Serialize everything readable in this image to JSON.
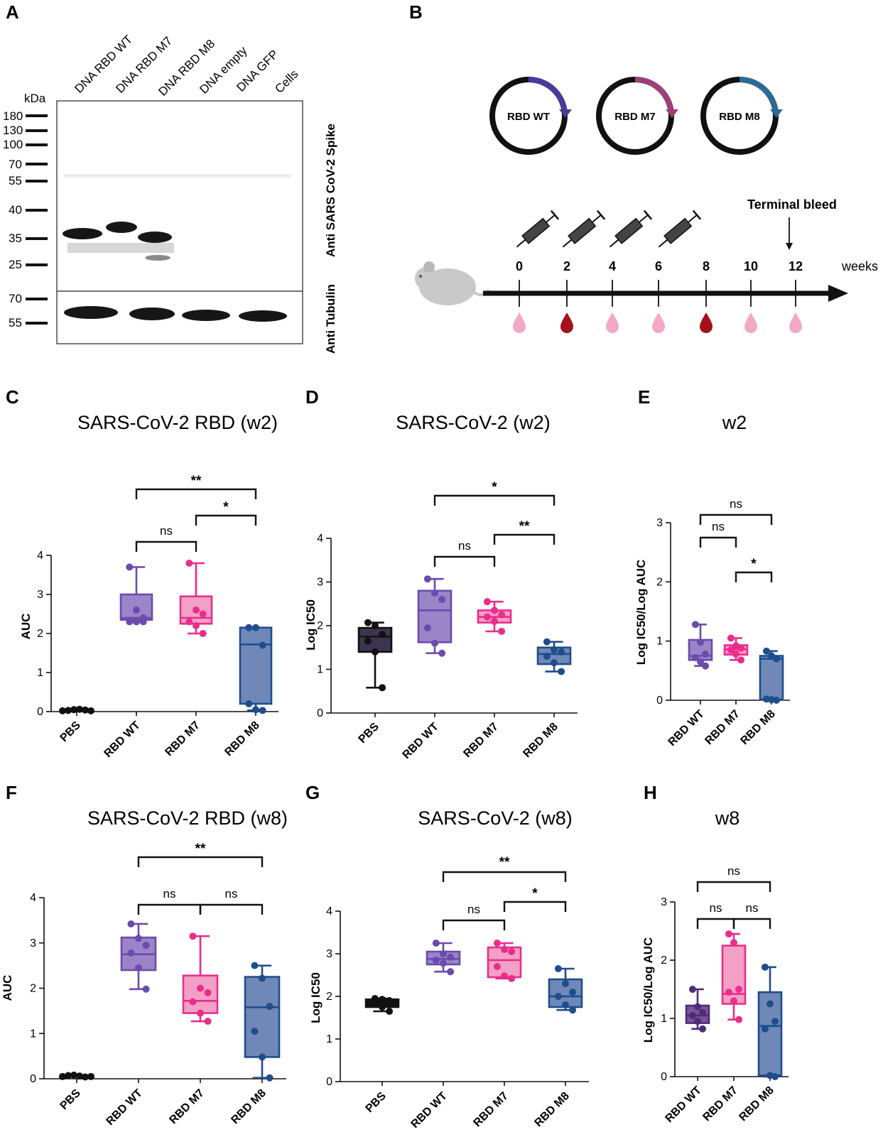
{
  "panel_labels": [
    "A",
    "B",
    "C",
    "D",
    "E",
    "F",
    "G",
    "H"
  ],
  "western": {
    "lanes": [
      "DNA RBD WT",
      "DNA RBD M7",
      "DNA RBD M8",
      "DNA empty",
      "DNA GFP",
      "Cells"
    ],
    "unit": "kDa",
    "top_markers": [
      "180",
      "130",
      "100",
      "70",
      "55",
      "40",
      "35",
      "25"
    ],
    "bottom_markers": [
      "70",
      "55"
    ],
    "top_label": "Anti SARS CoV-2 Spike",
    "bottom_label": "Anti Tubulin"
  },
  "schedule": {
    "plasmids": [
      "RBD WT",
      "RBD M7",
      "RBD M8"
    ],
    "plasmid_colors": [
      "#4b3a9c",
      "#9c3f7a",
      "#2c6a96"
    ],
    "weeks": [
      "0",
      "2",
      "4",
      "6",
      "8",
      "10",
      "12"
    ],
    "weeks_label": "weeks",
    "terminal": "Terminal bleed"
  },
  "chart_data": [
    {
      "type": "box",
      "panel": "C",
      "title": "SARS-CoV-2 RBD (w2)",
      "ylabel": "AUC",
      "ylim": [
        0,
        4
      ],
      "yticks": [
        "0",
        "1",
        "2",
        "3",
        "4"
      ],
      "categories": [
        "PBS",
        "RBD WT",
        "RBD M7",
        "RBD M8"
      ],
      "series": [
        {
          "name": "PBS",
          "color": "#111111",
          "fill": "#111111",
          "values": [
            0.02,
            0.03,
            0.05,
            0.06,
            0.04,
            0.02
          ]
        },
        {
          "name": "RBD WT",
          "color": "#6b4bab",
          "fill": "#9b85c9",
          "values": [
            3.7,
            2.6,
            2.4,
            2.3,
            2.3,
            2.3
          ],
          "box": [
            2.3,
            2.35,
            2.4,
            3.0,
            3.7
          ]
        },
        {
          "name": "RBD M7",
          "color": "#ea2d8c",
          "fill": "#f3a0c6",
          "values": [
            3.8,
            2.6,
            2.5,
            2.3,
            2.2,
            2.0
          ],
          "box": [
            2.0,
            2.25,
            2.4,
            2.95,
            3.8
          ]
        },
        {
          "name": "RBD M8",
          "color": "#1f4d8c",
          "fill": "#6f88b8",
          "values": [
            2.15,
            2.15,
            1.7,
            0.2,
            0.05,
            0.03
          ],
          "box": [
            0.03,
            0.2,
            1.72,
            2.15,
            2.15
          ]
        }
      ],
      "brackets": [
        {
          "from": 1,
          "to": 3,
          "label": "**"
        },
        {
          "from": 2,
          "to": 3,
          "label": "*"
        },
        {
          "from": 1,
          "to": 2,
          "label": "ns"
        }
      ]
    },
    {
      "type": "box",
      "panel": "D",
      "title": "SARS-CoV-2 (w2)",
      "ylabel": "Log IC50",
      "ylim": [
        0,
        4
      ],
      "yticks": [
        "0",
        "1",
        "2",
        "3",
        "4"
      ],
      "categories": [
        "PBS",
        "RBD WT",
        "RBD M7",
        "RBD M8"
      ],
      "series": [
        {
          "name": "PBS",
          "color": "#111111",
          "fill": "#3d3550",
          "values": [
            2.07,
            2.0,
            1.8,
            1.65,
            1.4,
            0.58
          ],
          "box": [
            0.58,
            1.4,
            1.75,
            1.95,
            2.07
          ]
        },
        {
          "name": "RBD WT",
          "color": "#6b4bab",
          "fill": "#9b85c9",
          "values": [
            3.07,
            2.75,
            2.6,
            1.95,
            1.6,
            1.37
          ],
          "box": [
            1.37,
            1.62,
            2.35,
            2.8,
            3.07
          ]
        },
        {
          "name": "RBD M7",
          "color": "#ea2d8c",
          "fill": "#f3a0c6",
          "values": [
            2.55,
            2.35,
            2.25,
            2.2,
            2.1,
            1.87
          ],
          "box": [
            1.87,
            2.07,
            2.2,
            2.35,
            2.55
          ]
        },
        {
          "name": "RBD M8",
          "color": "#1f4d8c",
          "fill": "#6f88b8",
          "values": [
            1.63,
            1.45,
            1.4,
            1.3,
            1.15,
            0.95
          ],
          "box": [
            0.95,
            1.12,
            1.35,
            1.5,
            1.63
          ]
        }
      ],
      "brackets": [
        {
          "from": 1,
          "to": 3,
          "label": "*"
        },
        {
          "from": 2,
          "to": 3,
          "label": "**"
        },
        {
          "from": 1,
          "to": 2,
          "label": "ns"
        }
      ]
    },
    {
      "type": "box",
      "panel": "E",
      "title": "w2",
      "ylabel": "Log IC50/Log AUC",
      "ylim": [
        0,
        3
      ],
      "yticks": [
        "0",
        "1",
        "2",
        "3"
      ],
      "categories": [
        "RBD WT",
        "RBD M7",
        "RBD M8"
      ],
      "series": [
        {
          "name": "RBD WT",
          "color": "#6b4bab",
          "fill": "#9b85c9",
          "values": [
            1.28,
            0.98,
            0.78,
            0.72,
            0.65,
            0.58
          ],
          "box": [
            0.58,
            0.68,
            0.75,
            1.02,
            1.28
          ]
        },
        {
          "name": "RBD M7",
          "color": "#ea2d8c",
          "fill": "#f3a0c6",
          "values": [
            1.05,
            0.92,
            0.88,
            0.85,
            0.78,
            0.68
          ],
          "box": [
            0.68,
            0.77,
            0.86,
            0.93,
            1.05
          ]
        },
        {
          "name": "RBD M8",
          "color": "#1f4d8c",
          "fill": "#6f88b8",
          "values": [
            0.83,
            0.75,
            0.7,
            0.02,
            0.01,
            0.0
          ],
          "box": [
            0.0,
            0.01,
            0.7,
            0.75,
            0.83
          ]
        }
      ],
      "brackets": [
        {
          "from": 0,
          "to": 2,
          "label": "ns"
        },
        {
          "from": 0,
          "to": 1,
          "label": "ns"
        },
        {
          "from": 1,
          "to": 2,
          "label": "*"
        }
      ]
    },
    {
      "type": "box",
      "panel": "F",
      "title": "SARS-CoV-2 RBD (w8)",
      "ylabel": "AUC",
      "ylim": [
        0,
        4
      ],
      "yticks": [
        "0",
        "1",
        "2",
        "3",
        "4"
      ],
      "categories": [
        "PBS",
        "RBD WT",
        "RBD M7",
        "RBD M8"
      ],
      "series": [
        {
          "name": "PBS",
          "color": "#111111",
          "fill": "#111111",
          "values": [
            0.05,
            0.07,
            0.08,
            0.06,
            0.04,
            0.05
          ]
        },
        {
          "name": "RBD WT",
          "color": "#6b4bab",
          "fill": "#9b85c9",
          "values": [
            3.42,
            3.1,
            2.95,
            2.78,
            2.45,
            1.98
          ],
          "box": [
            1.98,
            2.4,
            2.75,
            3.12,
            3.42
          ]
        },
        {
          "name": "RBD M7",
          "color": "#ea2d8c",
          "fill": "#f3a0c6",
          "values": [
            3.15,
            2.0,
            1.9,
            1.7,
            1.45,
            1.27
          ],
          "box": [
            1.27,
            1.45,
            1.72,
            2.28,
            3.15
          ]
        },
        {
          "name": "RBD M8",
          "color": "#1f4d8c",
          "fill": "#6f88b8",
          "values": [
            2.5,
            2.22,
            1.6,
            1.05,
            0.48,
            0.02
          ],
          "box": [
            0.02,
            0.48,
            1.58,
            2.25,
            2.5
          ]
        }
      ],
      "brackets": [
        {
          "from": 1,
          "to": 3,
          "label": "**"
        },
        {
          "from": 1,
          "to": 2,
          "label": "ns"
        },
        {
          "from": 2,
          "to": 3,
          "label": "ns"
        }
      ]
    },
    {
      "type": "box",
      "panel": "G",
      "title": "SARS-CoV-2 (w8)",
      "ylabel": "Log IC50",
      "ylim": [
        0,
        4
      ],
      "yticks": [
        "0",
        "1",
        "2",
        "3",
        "4"
      ],
      "categories": [
        "PBS",
        "RBD WT",
        "RBD M7",
        "RBD M8"
      ],
      "series": [
        {
          "name": "PBS",
          "color": "#111111",
          "fill": "#111111",
          "values": [
            1.95,
            1.93,
            1.9,
            1.82,
            1.75,
            1.65
          ],
          "box": [
            1.65,
            1.75,
            1.85,
            1.93,
            1.95
          ]
        },
        {
          "name": "RBD WT",
          "color": "#6b4bab",
          "fill": "#9b85c9",
          "values": [
            3.25,
            3.0,
            2.92,
            2.85,
            2.78,
            2.58
          ],
          "box": [
            2.58,
            2.75,
            2.88,
            3.05,
            3.25
          ]
        },
        {
          "name": "RBD M7",
          "color": "#ea2d8c",
          "fill": "#f3a0c6",
          "values": [
            3.25,
            3.1,
            3.05,
            2.7,
            2.48,
            2.42
          ],
          "box": [
            2.42,
            2.45,
            2.85,
            3.15,
            3.25
          ]
        },
        {
          "name": "RBD M8",
          "color": "#1f4d8c",
          "fill": "#6f88b8",
          "values": [
            2.65,
            2.3,
            2.1,
            2.0,
            1.8,
            1.68
          ],
          "box": [
            1.68,
            1.75,
            2.0,
            2.4,
            2.65
          ]
        }
      ],
      "brackets": [
        {
          "from": 1,
          "to": 3,
          "label": "**"
        },
        {
          "from": 2,
          "to": 3,
          "label": "*"
        },
        {
          "from": 1,
          "to": 2,
          "label": "ns"
        }
      ]
    },
    {
      "type": "box",
      "panel": "H",
      "title": "w8",
      "ylabel": "Log IC50/Log AUC",
      "ylim": [
        0,
        3
      ],
      "yticks": [
        "0",
        "1",
        "2",
        "3"
      ],
      "categories": [
        "RBD WT",
        "RBD M7",
        "RBD M8"
      ],
      "series": [
        {
          "name": "RBD WT",
          "color": "#4f2a7a",
          "fill": "#7a5596",
          "values": [
            1.5,
            1.2,
            1.1,
            1.05,
            0.95,
            0.82
          ],
          "box": [
            0.82,
            0.92,
            1.05,
            1.22,
            1.5
          ]
        },
        {
          "name": "RBD M7",
          "color": "#ea2d8c",
          "fill": "#f3a0c6",
          "values": [
            2.45,
            2.3,
            1.5,
            1.45,
            1.3,
            0.98
          ],
          "box": [
            0.98,
            1.25,
            1.42,
            2.25,
            2.45
          ]
        },
        {
          "name": "RBD M8",
          "color": "#1f4d8c",
          "fill": "#6f88b8",
          "values": [
            1.88,
            1.25,
            0.95,
            0.82,
            0.02,
            0.0
          ],
          "box": [
            0.0,
            0.02,
            0.87,
            1.45,
            1.88
          ]
        }
      ],
      "brackets": [
        {
          "from": 0,
          "to": 2,
          "label": "ns"
        },
        {
          "from": 0,
          "to": 1,
          "label": "ns"
        },
        {
          "from": 1,
          "to": 2,
          "label": "ns"
        }
      ]
    }
  ]
}
